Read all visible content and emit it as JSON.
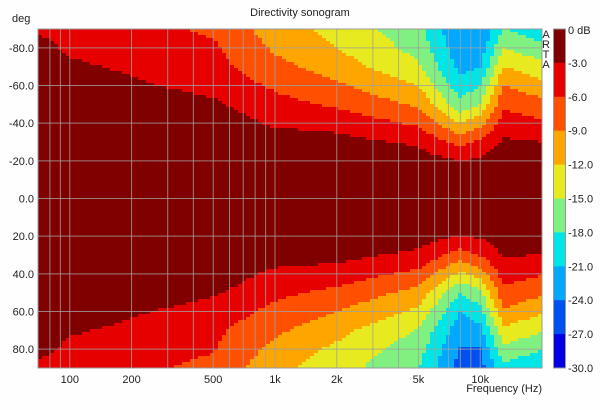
{
  "chart_data": {
    "type": "heatmap",
    "title": "Directivity sonogram",
    "xlabel": "Frequency (Hz)",
    "ylabel": "deg",
    "watermark": "ARTA",
    "x_scale": "log",
    "xlim": [
      70,
      20000
    ],
    "ylim": [
      -90,
      90
    ],
    "x_ticks": [
      {
        "v": 100,
        "label": "100"
      },
      {
        "v": 200,
        "label": "200"
      },
      {
        "v": 500,
        "label": "500"
      },
      {
        "v": 1000,
        "label": "1k"
      },
      {
        "v": 2000,
        "label": "2k"
      },
      {
        "v": 5000,
        "label": "5k"
      },
      {
        "v": 10000,
        "label": "10k"
      }
    ],
    "y_ticks": [
      {
        "v": -80,
        "label": "-80.0"
      },
      {
        "v": -60,
        "label": "-60.0"
      },
      {
        "v": -40,
        "label": "-40.0"
      },
      {
        "v": -20,
        "label": "-20.0"
      },
      {
        "v": 0,
        "label": "0.0"
      },
      {
        "v": 20,
        "label": "20.0"
      },
      {
        "v": 40,
        "label": "40.0"
      },
      {
        "v": 60,
        "label": "60.0"
      },
      {
        "v": 80,
        "label": "80.0"
      }
    ],
    "colorbar": {
      "unit_label": "0 dB",
      "labels": [
        "-3.0",
        "-6.0",
        "-9.0",
        "-12.0",
        "-15.0",
        "-18.0",
        "-21.0",
        "-24.0",
        "-27.0",
        "-30.0"
      ],
      "levels": [
        0,
        -3,
        -6,
        -9,
        -12,
        -15,
        -18,
        -21,
        -24,
        -27,
        -30
      ],
      "colors": [
        "#800000",
        "#e60000",
        "#ff5000",
        "#ffa500",
        "#e6ea1e",
        "#80f080",
        "#00e6e6",
        "#00a8ff",
        "#0050f0",
        "#0000e0"
      ]
    },
    "profile_angles_deg": [
      0,
      10,
      20,
      30,
      40,
      50,
      60,
      70,
      80,
      90
    ],
    "profiles": [
      {
        "freq": 70,
        "dB": [
          0,
          0,
          0,
          0,
          0,
          0,
          0,
          -1,
          -2,
          -3.5
        ]
      },
      {
        "freq": 100,
        "dB": [
          0,
          0,
          0,
          0,
          0,
          0,
          -1,
          -2.5,
          -3.5,
          -4
        ]
      },
      {
        "freq": 200,
        "dB": [
          0,
          0,
          0,
          0,
          0,
          -1,
          -2.5,
          -3.5,
          -4.5,
          -5
        ]
      },
      {
        "freq": 500,
        "dB": [
          0,
          0,
          0,
          0,
          -1,
          -2.5,
          -4,
          -5,
          -5.5,
          -6.5
        ]
      },
      {
        "freq": 1000,
        "dB": [
          0,
          0,
          0,
          -1.5,
          -3.5,
          -5,
          -6.5,
          -8,
          -9.5,
          -10.5
        ]
      },
      {
        "freq": 2000,
        "dB": [
          0,
          0,
          -0.5,
          -2,
          -4,
          -6.5,
          -8.5,
          -10.5,
          -12,
          -13
        ]
      },
      {
        "freq": 5000,
        "dB": [
          0,
          0,
          -1.5,
          -3.5,
          -6.5,
          -9.5,
          -12,
          -14.5,
          -16,
          -17
        ]
      },
      {
        "freq": 8000,
        "dB": [
          0,
          -0.5,
          -3,
          -7,
          -12,
          -17,
          -20,
          -22,
          -23,
          -24
        ]
      },
      {
        "freq": 10000,
        "dB": [
          0,
          -0.5,
          -2.5,
          -5.5,
          -10,
          -15,
          -18,
          -21,
          -23,
          -24
        ]
      },
      {
        "freq": 13000,
        "dB": [
          0,
          0,
          -1,
          -2.5,
          -4.5,
          -6.5,
          -9,
          -12,
          -15,
          -18
        ]
      },
      {
        "freq": 20000,
        "dB": [
          0,
          0,
          -1,
          -3,
          -5.5,
          -8,
          -11,
          -14,
          -17,
          -20
        ]
      }
    ]
  }
}
